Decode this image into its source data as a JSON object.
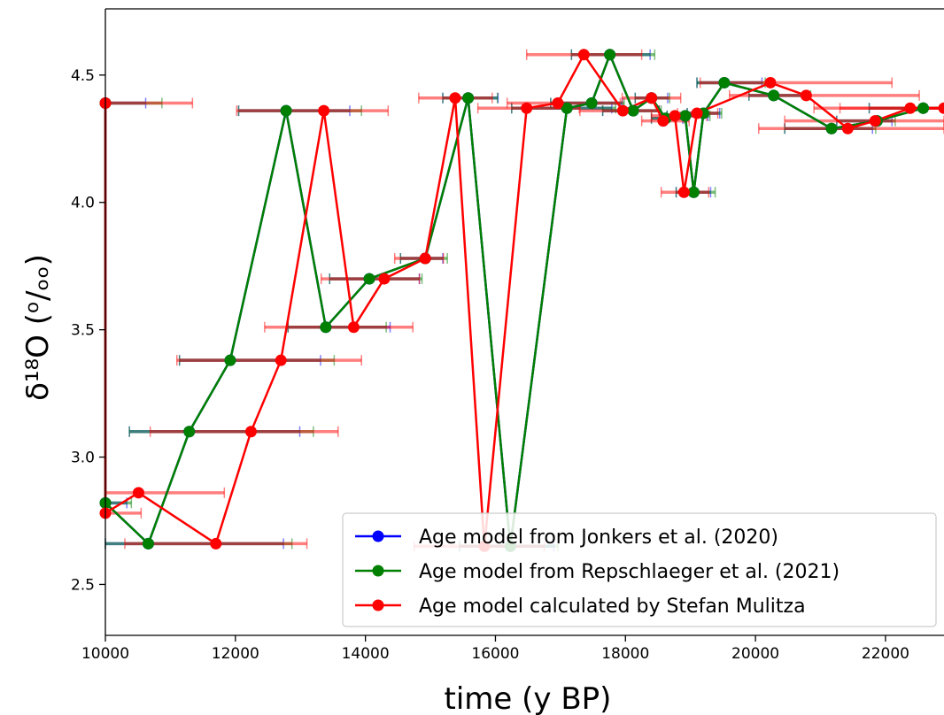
{
  "chart_data": {
    "type": "line",
    "title": "",
    "xlabel": "time (y BP)",
    "ylabel": "δ¹⁸O (ᵒ/ₒₒ)",
    "xlim": [
      10000,
      22900
    ],
    "ylim": [
      2.3,
      4.76
    ],
    "x_ticks": [
      10000,
      12000,
      14000,
      16000,
      18000,
      20000,
      22000
    ],
    "y_ticks": [
      2.5,
      3.0,
      3.5,
      4.0,
      4.5
    ],
    "grid": false,
    "legend_position": "lower-right",
    "error_bars": "horizontal age uncertainty per sample",
    "series": [
      {
        "name": "Age model from Jonkers et al. (2020)",
        "color": "#0000ff",
        "points": [
          {
            "x": 10000,
            "y": 4.39,
            "xerr": [
              10000,
              10620
            ]
          },
          {
            "x": 10000,
            "y": 2.82,
            "xerr": [
              10000,
              10330
            ]
          },
          {
            "x": 10660,
            "y": 2.66,
            "xerr": [
              10000,
              12740
            ]
          },
          {
            "x": 11290,
            "y": 3.1,
            "xerr": [
              10370,
              12990
            ]
          },
          {
            "x": 11920,
            "y": 3.38,
            "xerr": [
              11140,
              13310
            ]
          },
          {
            "x": 12780,
            "y": 4.36,
            "xerr": [
              12050,
              13760
            ]
          },
          {
            "x": 13390,
            "y": 3.51,
            "xerr": [
              12810,
              14380
            ]
          },
          {
            "x": 14060,
            "y": 3.7,
            "xerr": [
              13450,
              14830
            ]
          },
          {
            "x": 14920,
            "y": 3.78,
            "xerr": [
              14540,
              15190
            ]
          },
          {
            "x": 15580,
            "y": 4.41,
            "xerr": [
              15190,
              16040
            ]
          },
          {
            "x": 16230,
            "y": 2.65,
            "xerr": [
              15450,
              16900
            ]
          },
          {
            "x": 17100,
            "y": 4.37,
            "xerr": [
              16250,
              17790
            ]
          },
          {
            "x": 17480,
            "y": 4.39,
            "xerr": [
              16850,
              17950
            ]
          },
          {
            "x": 17760,
            "y": 4.58,
            "xerr": [
              17170,
              18380
            ]
          },
          {
            "x": 18120,
            "y": 4.36,
            "xerr": [
              17650,
              18520
            ]
          },
          {
            "x": 18400,
            "y": 4.41,
            "xerr": [
              18150,
              18650
            ]
          },
          {
            "x": 18620,
            "y": 4.33,
            "xerr": [
              18400,
              18880
            ]
          },
          {
            "x": 18920,
            "y": 4.34,
            "xerr": [
              18640,
              19270
            ]
          },
          {
            "x": 19050,
            "y": 4.04,
            "xerr": [
              18780,
              19310
            ]
          },
          {
            "x": 19200,
            "y": 4.35,
            "xerr": [
              18950,
              19450
            ]
          },
          {
            "x": 19520,
            "y": 4.47,
            "xerr": [
              19100,
              20100
            ]
          },
          {
            "x": 20280,
            "y": 4.42,
            "xerr": [
              19900,
              20800
            ]
          },
          {
            "x": 21170,
            "y": 4.29,
            "xerr": [
              20450,
              21800
            ]
          },
          {
            "x": 21870,
            "y": 4.32,
            "xerr": [
              21250,
              22100
            ]
          },
          {
            "x": 22580,
            "y": 4.37,
            "xerr": [
              21750,
              22900
            ]
          }
        ]
      },
      {
        "name": "Age model from Repschlaeger et al. (2021)",
        "color": "#008000",
        "points": [
          {
            "x": 10000,
            "y": 4.39,
            "xerr": [
              10000,
              10870
            ]
          },
          {
            "x": 10000,
            "y": 2.82,
            "xerr": [
              10000,
              10400
            ]
          },
          {
            "x": 10660,
            "y": 2.66,
            "xerr": [
              10000,
              12870
            ]
          },
          {
            "x": 11290,
            "y": 3.1,
            "xerr": [
              10370,
              13200
            ]
          },
          {
            "x": 11920,
            "y": 3.38,
            "xerr": [
              11140,
              13520
            ]
          },
          {
            "x": 12780,
            "y": 4.36,
            "xerr": [
              12050,
              13940
            ]
          },
          {
            "x": 13390,
            "y": 3.51,
            "xerr": [
              12810,
              14320
            ]
          },
          {
            "x": 14060,
            "y": 3.7,
            "xerr": [
              13450,
              14870
            ]
          },
          {
            "x": 14920,
            "y": 3.78,
            "xerr": [
              14540,
              15260
            ]
          },
          {
            "x": 15580,
            "y": 4.41,
            "xerr": [
              15190,
              16030
            ]
          },
          {
            "x": 16230,
            "y": 2.65,
            "xerr": [
              15450,
              16960
            ]
          },
          {
            "x": 17100,
            "y": 4.37,
            "xerr": [
              16250,
              17850
            ]
          },
          {
            "x": 17480,
            "y": 4.39,
            "xerr": [
              16850,
              17980
            ]
          },
          {
            "x": 17760,
            "y": 4.58,
            "xerr": [
              17170,
              18450
            ]
          },
          {
            "x": 18120,
            "y": 4.36,
            "xerr": [
              17650,
              18550
            ]
          },
          {
            "x": 18400,
            "y": 4.41,
            "xerr": [
              18150,
              18680
            ]
          },
          {
            "x": 18620,
            "y": 4.33,
            "xerr": [
              18400,
              18900
            ]
          },
          {
            "x": 18920,
            "y": 4.34,
            "xerr": [
              18640,
              19300
            ]
          },
          {
            "x": 19050,
            "y": 4.04,
            "xerr": [
              18780,
              19380
            ]
          },
          {
            "x": 19200,
            "y": 4.35,
            "xerr": [
              18950,
              19480
            ]
          },
          {
            "x": 19520,
            "y": 4.47,
            "xerr": [
              19100,
              20150
            ]
          },
          {
            "x": 20280,
            "y": 4.42,
            "xerr": [
              19900,
              20850
            ]
          },
          {
            "x": 21170,
            "y": 4.29,
            "xerr": [
              20450,
              21850
            ]
          },
          {
            "x": 21870,
            "y": 4.32,
            "xerr": [
              21250,
              22150
            ]
          },
          {
            "x": 22580,
            "y": 4.37,
            "xerr": [
              21750,
              22900
            ]
          }
        ]
      },
      {
        "name": "Age model calculated by Stefan Mulitza",
        "color": "#ff0000",
        "points": [
          {
            "x": 10000,
            "y": 4.39,
            "xerr": [
              10000,
              11340
            ]
          },
          {
            "x": 10000,
            "y": 2.78,
            "xerr": [
              10000,
              10550
            ]
          },
          {
            "x": 10510,
            "y": 2.86,
            "xerr": [
              10000,
              11830
            ]
          },
          {
            "x": 11700,
            "y": 2.66,
            "xerr": [
              10300,
              13100
            ]
          },
          {
            "x": 12240,
            "y": 3.1,
            "xerr": [
              10690,
              13580
            ]
          },
          {
            "x": 12700,
            "y": 3.38,
            "xerr": [
              11100,
              13940
            ]
          },
          {
            "x": 13360,
            "y": 4.36,
            "xerr": [
              12020,
              14350
            ]
          },
          {
            "x": 13820,
            "y": 3.51,
            "xerr": [
              12450,
              14730
            ]
          },
          {
            "x": 14290,
            "y": 3.7,
            "xerr": [
              13320,
              14830
            ]
          },
          {
            "x": 14920,
            "y": 3.78,
            "xerr": [
              14450,
              15200
            ]
          },
          {
            "x": 15380,
            "y": 4.41,
            "xerr": [
              14820,
              15950
            ]
          },
          {
            "x": 15830,
            "y": 2.65,
            "xerr": [
              14750,
              16750
            ]
          },
          {
            "x": 16480,
            "y": 4.37,
            "xerr": [
              15730,
              17290
            ]
          },
          {
            "x": 16960,
            "y": 4.39,
            "xerr": [
              16180,
              17920
            ]
          },
          {
            "x": 17360,
            "y": 4.58,
            "xerr": [
              16480,
              18250
            ]
          },
          {
            "x": 17960,
            "y": 4.36,
            "xerr": [
              17300,
              18520
            ]
          },
          {
            "x": 18400,
            "y": 4.41,
            "xerr": [
              17950,
              18850
            ]
          },
          {
            "x": 18580,
            "y": 4.32,
            "xerr": [
              18250,
              18980
            ]
          },
          {
            "x": 18760,
            "y": 4.34,
            "xerr": [
              18400,
              19250
            ]
          },
          {
            "x": 18900,
            "y": 4.04,
            "xerr": [
              18550,
              19280
            ]
          },
          {
            "x": 19100,
            "y": 4.35,
            "xerr": [
              18800,
              19420
            ]
          },
          {
            "x": 20230,
            "y": 4.47,
            "xerr": [
              19150,
              22100
            ]
          },
          {
            "x": 20780,
            "y": 4.42,
            "xerr": [
              19600,
              22520
            ]
          },
          {
            "x": 21420,
            "y": 4.29,
            "xerr": [
              20050,
              22900
            ]
          },
          {
            "x": 21840,
            "y": 4.32,
            "xerr": [
              20450,
              22900
            ]
          },
          {
            "x": 22380,
            "y": 4.37,
            "xerr": [
              20900,
              22900
            ]
          },
          {
            "x": 22900,
            "y": 4.37,
            "xerr": [
              21300,
              22900
            ]
          }
        ]
      }
    ]
  }
}
